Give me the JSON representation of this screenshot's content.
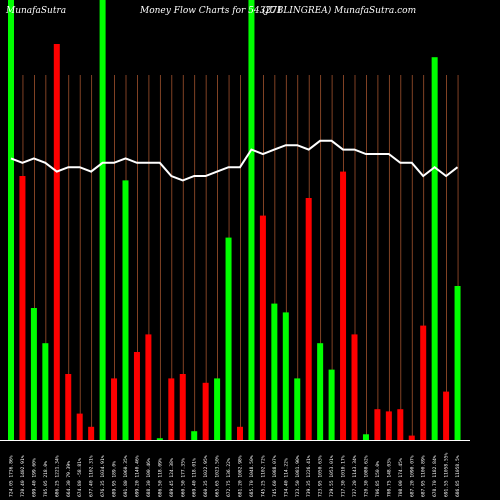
{
  "header": {
    "brand": "MunafaSutra",
    "title": "Money Flow  Charts for 543271",
    "stock": "(JUBLINGREA) MunafaSutra.com"
  },
  "chart_data": {
    "type": "bar",
    "title": "Money Flow Charts for 543271",
    "colors": {
      "up": "#00ff00",
      "down": "#ff0000",
      "grid": "#a0522d",
      "line": "#ffffff",
      "background": "#000000",
      "baseline": "#ffffff"
    },
    "ylim": [
      0,
      100
    ],
    "bars": [
      {
        "label": "724.05 1736.86%",
        "value": 100,
        "color": "up"
      },
      {
        "label": "720.40 1402.91%",
        "value": 60,
        "color": "down"
      },
      {
        "label": "699.40 199.60%",
        "value": 30,
        "color": "up"
      },
      {
        "label": "705.05 218.0%",
        "value": 22,
        "color": "up"
      },
      {
        "label": "686.25 1221.34%",
        "value": 90,
        "color": "down"
      },
      {
        "label": "664.30 79.39%",
        "value": 15,
        "color": "down"
      },
      {
        "label": "674.80 -58.81%",
        "value": 6,
        "color": "down"
      },
      {
        "label": "677.40 1102.31%",
        "value": 3,
        "color": "down"
      },
      {
        "label": "676.35 1034.91%",
        "value": 100,
        "color": "up"
      },
      {
        "label": "689.95 189.0%",
        "value": 14,
        "color": "down"
      },
      {
        "label": "691.80 1060.35%",
        "value": 59,
        "color": "up"
      },
      {
        "label": "699.20 1140.46%",
        "value": 20,
        "color": "down"
      },
      {
        "label": "688.30 100.46%",
        "value": 24,
        "color": "down"
      },
      {
        "label": "686.50 118.09%",
        "value": 0.4,
        "color": "up"
      },
      {
        "label": "689.45 124.38%",
        "value": 14,
        "color": "down"
      },
      {
        "label": "660.50 177.35%",
        "value": 15,
        "color": "down"
      },
      {
        "label": "669.40 118.01%",
        "value": 2,
        "color": "up"
      },
      {
        "label": "660.35 1022.95%",
        "value": 13,
        "color": "down"
      },
      {
        "label": "665.65 1023.50%",
        "value": 14,
        "color": "up"
      },
      {
        "label": "672.75 136.22%",
        "value": 46,
        "color": "up"
      },
      {
        "label": "681.20 1082.98%",
        "value": 3,
        "color": "down"
      },
      {
        "label": "685.70 1048.50%",
        "value": 100,
        "color": "up"
      },
      {
        "label": "745.25 1102.72%",
        "value": 51,
        "color": "down"
      },
      {
        "label": "745.60 1088.07%",
        "value": 31,
        "color": "up"
      },
      {
        "label": "734.40 114.22%",
        "value": 29,
        "color": "up"
      },
      {
        "label": "723.50 1081.90%",
        "value": 14,
        "color": "up"
      },
      {
        "label": "739.35 1226.41%",
        "value": 55,
        "color": "down"
      },
      {
        "label": "723.95 1050.63%",
        "value": 22,
        "color": "up"
      },
      {
        "label": "729.55 1053.01%",
        "value": 16,
        "color": "up"
      },
      {
        "label": "717.30 1010.17%",
        "value": 61,
        "color": "down"
      },
      {
        "label": "737.20 1143.34%",
        "value": 24,
        "color": "down"
      },
      {
        "label": "720.30 1080.62%",
        "value": 1.3,
        "color": "up"
      },
      {
        "label": "706.85 150.0%",
        "value": 7,
        "color": "down"
      },
      {
        "label": "708.75 148.03%",
        "value": 6.5,
        "color": "down"
      },
      {
        "label": "708.00 174.45%",
        "value": 7,
        "color": "down"
      },
      {
        "label": "687.20 1090.07%",
        "value": 1,
        "color": "down"
      },
      {
        "label": "687.95 1100.89%",
        "value": 26,
        "color": "down"
      },
      {
        "label": "678.70 1182.84%",
        "value": 87,
        "color": "up"
      },
      {
        "label": "691.55 11058.55%",
        "value": 11,
        "color": "down"
      },
      {
        "label": "686.85 11058.5%",
        "value": 35,
        "color": "up"
      }
    ],
    "price_line": [
      64,
      63,
      64,
      63,
      61,
      62,
      62,
      61,
      63,
      63,
      64,
      63,
      63,
      63,
      60,
      59,
      60,
      60,
      61,
      62,
      62,
      66,
      65,
      66,
      67,
      67,
      66,
      68,
      68,
      66,
      66,
      65,
      65,
      65,
      63,
      63,
      60,
      62,
      60,
      62
    ]
  }
}
